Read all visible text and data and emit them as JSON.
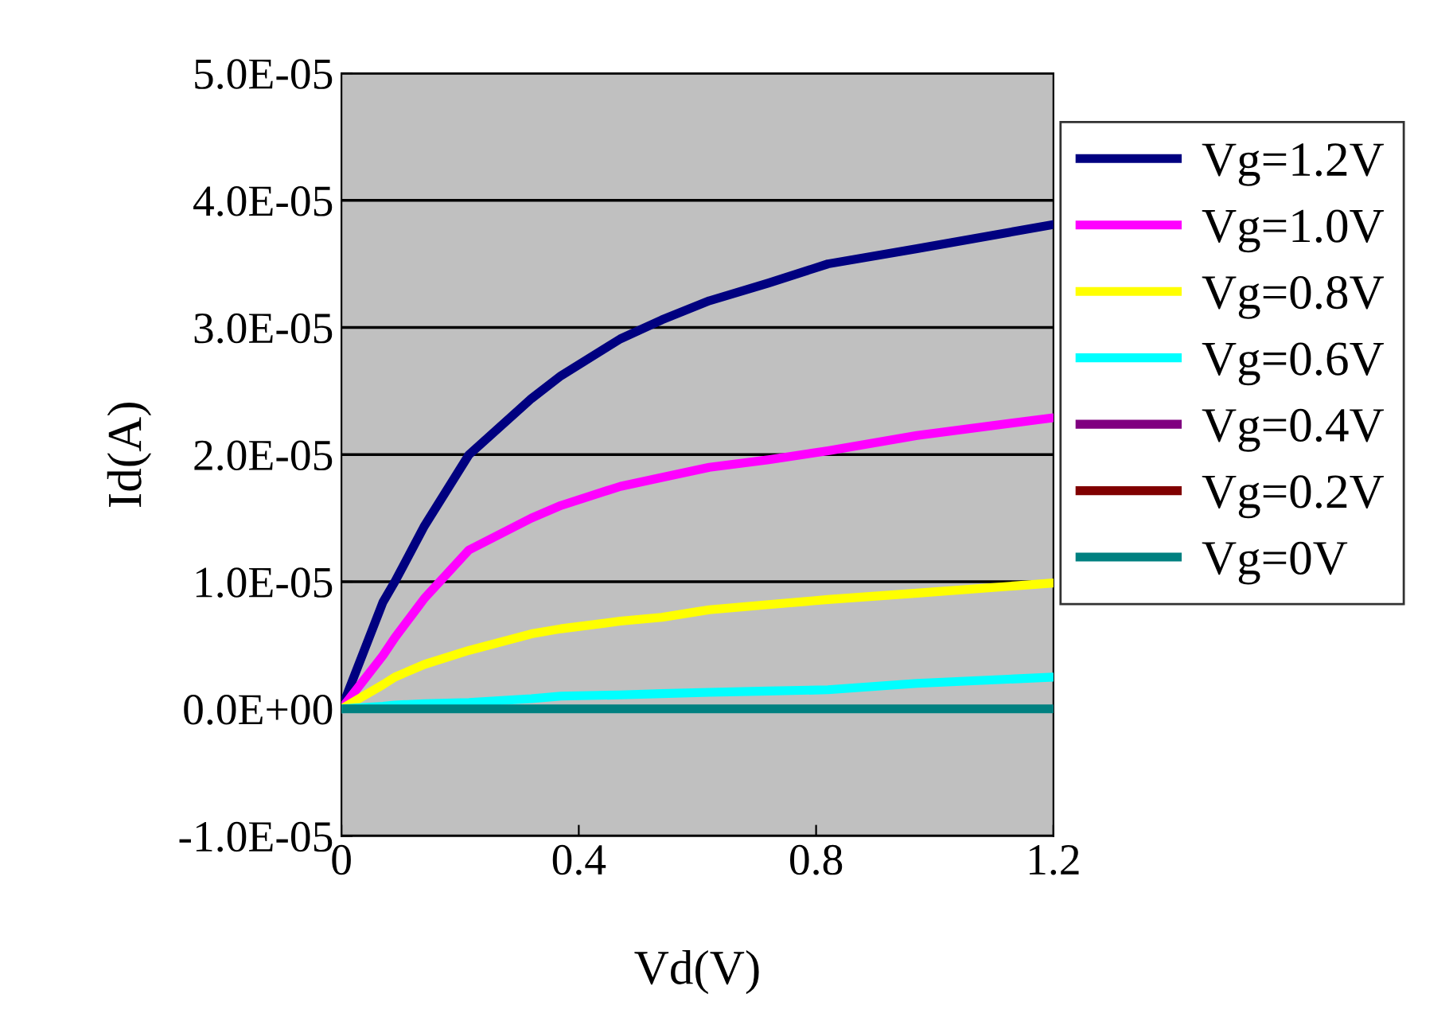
{
  "chart_data": {
    "type": "line",
    "xlabel": "Vd(V)",
    "ylabel": "Id(A)",
    "xlim": [
      0,
      1.2
    ],
    "xticks": [
      0,
      0.4,
      0.8,
      1.2
    ],
    "ylim": [
      -1e-05,
      5e-05
    ],
    "yticks": [
      {
        "value": -1e-05,
        "label": "-1.0E-05"
      },
      {
        "value": 0,
        "label": "0.0E+00"
      },
      {
        "value": 1e-05,
        "label": "1.0E-05"
      },
      {
        "value": 2e-05,
        "label": "2.0E-05"
      },
      {
        "value": 3e-05,
        "label": "3.0E-05"
      },
      {
        "value": 4e-05,
        "label": "4.0E-05"
      },
      {
        "value": 5e-05,
        "label": "5.0E-05"
      }
    ],
    "grid": "y",
    "legend": "right",
    "marker": "none",
    "line_style": "solid",
    "x": [
      0,
      0.07,
      0.09,
      0.14,
      0.215,
      0.32,
      0.37,
      0.47,
      0.54,
      0.62,
      0.72,
      0.82,
      0.97,
      1.2
    ],
    "series": [
      {
        "name": "Vg=1.2V",
        "color": "#000080",
        "values": [
          0,
          8.4e-06,
          1e-05,
          1.44e-05,
          2e-05,
          2.44e-05,
          2.62e-05,
          2.91e-05,
          3.06e-05,
          3.21e-05,
          3.35e-05,
          3.5e-05,
          3.62e-05,
          3.81e-05
        ]
      },
      {
        "name": "Vg=1.0V",
        "color": "#ff00ff",
        "values": [
          0,
          4.2e-06,
          5.6e-06,
          8.7e-06,
          1.25e-05,
          1.5e-05,
          1.6e-05,
          1.75e-05,
          1.82e-05,
          1.9e-05,
          1.96e-05,
          2.03e-05,
          2.15e-05,
          2.29e-05
        ]
      },
      {
        "name": "Vg=0.8V",
        "color": "#ffff00",
        "values": [
          0,
          1.9e-06,
          2.5e-06,
          3.5e-06,
          4.6e-06,
          5.9e-06,
          6.3e-06,
          6.9e-06,
          7.2e-06,
          7.8e-06,
          8.2e-06,
          8.6e-06,
          9.1e-06,
          9.9e-06
        ]
      },
      {
        "name": "Vg=0.6V",
        "color": "#00ffff",
        "values": [
          0,
          2e-07,
          3e-07,
          4e-07,
          5e-07,
          8e-07,
          1e-06,
          1.1e-06,
          1.2e-06,
          1.3e-06,
          1.4e-06,
          1.5e-06,
          2e-06,
          2.5e-06
        ]
      },
      {
        "name": "Vg=0.4V",
        "color": "#800080",
        "values": [
          null,
          null,
          null,
          null,
          null,
          null,
          null,
          null,
          null,
          null,
          null,
          null,
          null,
          null
        ]
      },
      {
        "name": "Vg=0.2V",
        "color": "#800000",
        "values": [
          null,
          null,
          null,
          null,
          null,
          null,
          null,
          null,
          null,
          null,
          null,
          null,
          null,
          null
        ]
      },
      {
        "name": "Vg=0V",
        "color": "#008080",
        "values": [
          0,
          0,
          0,
          0,
          0,
          0,
          0,
          0,
          0,
          0,
          0,
          0,
          0,
          0
        ]
      }
    ]
  }
}
